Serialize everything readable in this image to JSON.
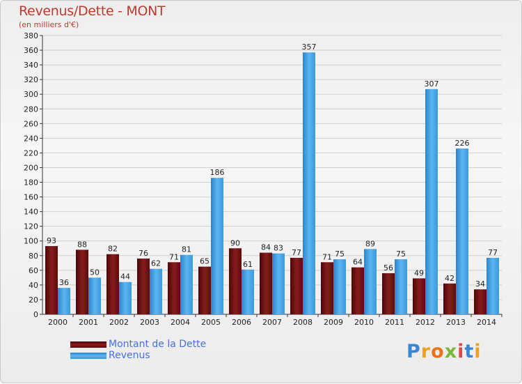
{
  "chart_data": {
    "type": "bar",
    "title": "Revenus/Dette - MONT",
    "subtitle": "(en milliers d'€)",
    "xlabel": "",
    "ylabel": "",
    "ylim": [
      0,
      380
    ],
    "ytick_step": 20,
    "grid": true,
    "legend_position": "bottom-left",
    "categories": [
      "2000",
      "2001",
      "2002",
      "2003",
      "2004",
      "2005",
      "2006",
      "2007",
      "2008",
      "2009",
      "2010",
      "2011",
      "2012",
      "2013",
      "2014"
    ],
    "series": [
      {
        "name": "Montant de la Dette",
        "color": "#7a1515",
        "values": [
          93,
          88,
          82,
          76,
          71,
          65,
          90,
          84,
          77,
          71,
          64,
          56,
          49,
          42,
          34
        ]
      },
      {
        "name": "Revenus",
        "color": "#3d9ee0",
        "values": [
          36,
          50,
          44,
          62,
          81,
          186,
          61,
          83,
          357,
          75,
          89,
          75,
          307,
          226,
          77
        ]
      }
    ]
  },
  "logo": {
    "letters": [
      "P",
      "r",
      "o",
      "x",
      "i",
      "t",
      "i"
    ],
    "colors": [
      "#3a86d6",
      "#f0a020",
      "#e8731c",
      "#7ab83a",
      "#e04848",
      "#3a86d6",
      "#f0a020"
    ]
  }
}
